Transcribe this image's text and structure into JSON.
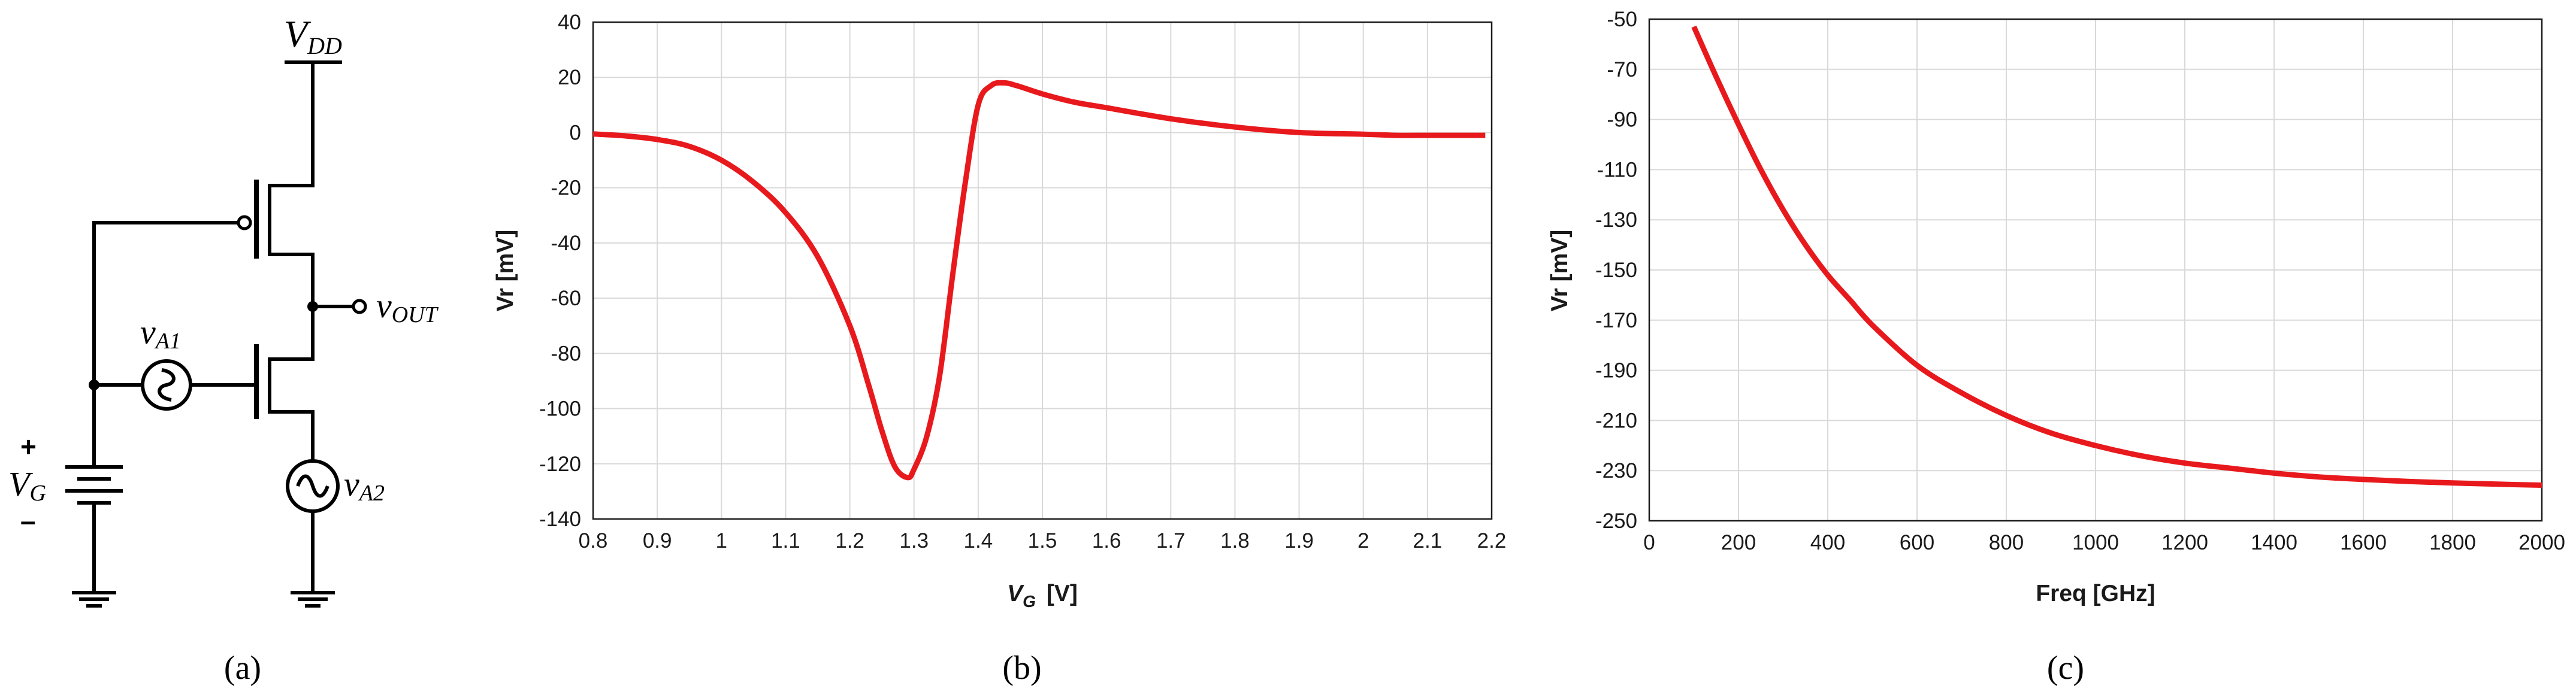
{
  "circuit": {
    "vdd_main": "V",
    "vdd_sub": "DD",
    "vout_main": "v",
    "vout_sub": "OUT",
    "va1_main": "v",
    "va1_sub": "A1",
    "va2_main": "v",
    "va2_sub": "A2",
    "vg_main": "V",
    "vg_sub": "G",
    "plus": "+",
    "minus": "–"
  },
  "subfigure_labels": {
    "a": "(a)",
    "b": "(b)",
    "c": "(c)"
  },
  "chart_data": [
    {
      "type": "line",
      "xlabel_main": "V",
      "xlabel_sub": "G",
      "xlabel_unit": "[V]",
      "ylabel": "Vr [mV]",
      "xlim": [
        0.8,
        2.2
      ],
      "ylim": [
        -140,
        40
      ],
      "xticks": [
        "0.8",
        "0.9",
        "1",
        "1.1",
        "1.2",
        "1.3",
        "1.4",
        "1.5",
        "1.6",
        "1.7",
        "1.8",
        "1.9",
        "2",
        "2.1",
        "2.2"
      ],
      "yticks": [
        "40",
        "20",
        "0",
        "-20",
        "-40",
        "-60",
        "-80",
        "-100",
        "-120",
        "-140"
      ],
      "grid": true,
      "line_color": "#e8191c",
      "series": [
        {
          "x": [
            0.8,
            0.85,
            0.9,
            0.95,
            1.0,
            1.05,
            1.1,
            1.15,
            1.2,
            1.23,
            1.25,
            1.27,
            1.29,
            1.3,
            1.32,
            1.34,
            1.36,
            1.38,
            1.4,
            1.42,
            1.44,
            1.46,
            1.5,
            1.55,
            1.6,
            1.7,
            1.8,
            1.9,
            2.0,
            2.05,
            2.1,
            2.15,
            2.19
          ],
          "y": [
            -0.5,
            -1.2,
            -2.5,
            -5,
            -10,
            -18,
            -29,
            -45,
            -70,
            -92,
            -108,
            -121,
            -125,
            -122,
            -110,
            -88,
            -52,
            -18,
            10,
            17,
            18,
            17,
            14,
            11,
            9,
            5,
            2,
            0,
            -0.6,
            -1,
            -1,
            -1,
            -1
          ]
        }
      ]
    },
    {
      "type": "line",
      "xlabel": "Freq  [GHz]",
      "ylabel": "Vr [mV]",
      "xlim": [
        0,
        2000
      ],
      "ylim": [
        -250,
        -50
      ],
      "xticks": [
        "0",
        "200",
        "400",
        "600",
        "800",
        "1000",
        "1200",
        "1400",
        "1600",
        "1800",
        "2000"
      ],
      "yticks": [
        "-50",
        "-70",
        "-90",
        "-110",
        "-130",
        "-150",
        "-170",
        "-190",
        "-210",
        "-230",
        "-250"
      ],
      "grid": true,
      "line_color": "#e8191c",
      "series": [
        {
          "x": [
            100,
            150,
            200,
            250,
            300,
            350,
            400,
            450,
            500,
            600,
            700,
            800,
            900,
            1000,
            1100,
            1200,
            1300,
            1400,
            1500,
            1600,
            1700,
            1800,
            1900,
            2000
          ],
          "y": [
            -53,
            -73,
            -92,
            -110,
            -126,
            -140,
            -152,
            -162,
            -172,
            -188,
            -199,
            -208,
            -215,
            -220,
            -224,
            -227,
            -229,
            -231,
            -232.5,
            -233.5,
            -234.3,
            -234.9,
            -235.4,
            -235.8
          ]
        }
      ]
    }
  ]
}
